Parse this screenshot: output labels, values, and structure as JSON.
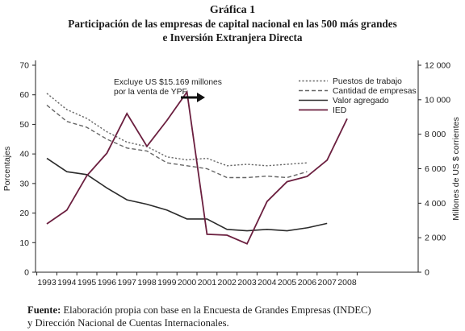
{
  "header": {
    "figure_number": "Gráfica 1",
    "title_line1": "Participación de las empresas de capital nacional en las 500 más grandes",
    "title_line2": "e Inversión Extranjera Directa"
  },
  "chart_data": {
    "type": "line",
    "categories": [
      "1993",
      "1994",
      "1995",
      "1996",
      "1997",
      "1998",
      "1999",
      "2000",
      "2001",
      "2002",
      "2003",
      "2004",
      "2005",
      "2006",
      "2007",
      "2008"
    ],
    "y_left": {
      "label": "Porcentajes",
      "range": [
        0,
        70
      ],
      "ticks": [
        "0",
        "10",
        "20",
        "30",
        "40",
        "50",
        "60",
        "70"
      ]
    },
    "y_right": {
      "label": "Millones de US $ corrientes",
      "range": [
        0,
        12000
      ],
      "ticks": [
        "0",
        "2 000",
        "4 000",
        "6 000",
        "8 000",
        "10 000",
        "12 000"
      ]
    },
    "series": [
      {
        "name": "Puestos de trabajo",
        "axis": "left",
        "style": "dotted",
        "color": "#666666",
        "x": [
          1993,
          1994,
          1995,
          1996,
          1997,
          1998,
          1999,
          2000,
          2001,
          2002,
          2003,
          2004,
          2005,
          2006
        ],
        "values": [
          60.5,
          55,
          52,
          47.5,
          44,
          42.5,
          39,
          38,
          38.5,
          36,
          36.5,
          36,
          36.5,
          37
        ]
      },
      {
        "name": "Cantidad de empresas",
        "axis": "left",
        "style": "dashed",
        "color": "#666666",
        "x": [
          1993,
          1994,
          1995,
          1996,
          1997,
          1998,
          1999,
          2000,
          2001,
          2002,
          2003,
          2004,
          2005,
          2006
        ],
        "values": [
          56.5,
          51,
          49,
          45,
          42,
          41,
          37,
          36,
          35,
          32,
          32,
          32.5,
          32,
          34
        ]
      },
      {
        "name": "Valor agregado",
        "axis": "left",
        "style": "solid",
        "color": "#2b2b2b",
        "x": [
          1993,
          1994,
          1995,
          1996,
          1997,
          1998,
          1999,
          2000,
          2001,
          2002,
          2003,
          2004,
          2005,
          2006,
          2007
        ],
        "values": [
          38.5,
          34,
          33,
          28.5,
          24.5,
          23,
          21,
          18,
          18,
          14.5,
          14,
          14.5,
          14,
          15,
          16.5
        ]
      },
      {
        "name": "IED",
        "axis": "right",
        "style": "solid",
        "color": "#6b1f3f",
        "x": [
          1993,
          1994,
          1995,
          1996,
          1997,
          1998,
          1999,
          2000,
          2001,
          2002,
          2003,
          2004,
          2005,
          2006,
          2007,
          2008
        ],
        "values": [
          2800,
          3600,
          5600,
          6900,
          9200,
          7300,
          8800,
          10450,
          2200,
          2150,
          1650,
          4100,
          5250,
          5550,
          6500,
          8900
        ]
      }
    ],
    "annotation": {
      "line1": "Excluye US $15.169 millones",
      "line2": "por la venta de YPF"
    },
    "legend_position": "top-right",
    "grid": false
  },
  "source": {
    "label": "Fuente:",
    "text_line1": "Elaboración propia con base en la Encuesta de Grandes Empresas (INDEC)",
    "text_line2": "y Dirección Nacional de Cuentas Internacionales."
  }
}
